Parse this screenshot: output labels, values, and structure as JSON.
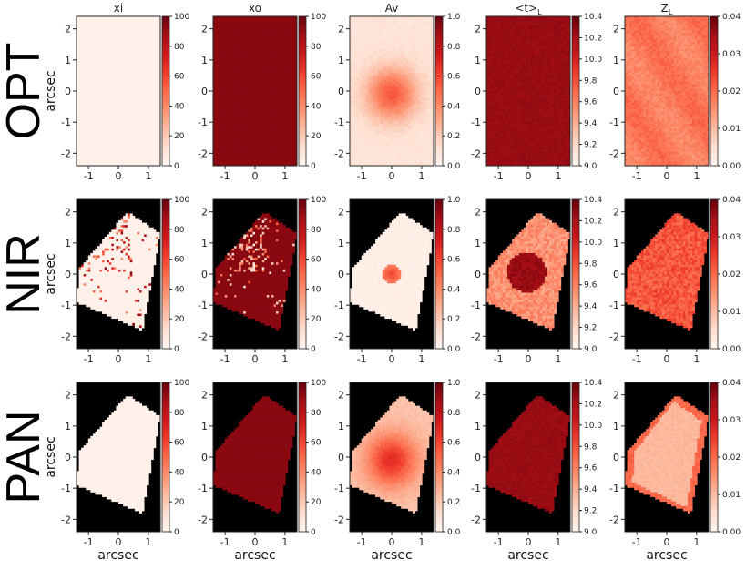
{
  "chart_data": {
    "type": "heatmap",
    "rows": [
      "OPT",
      "NIR",
      "PAN"
    ],
    "columns": [
      {
        "key": "xi",
        "title": "xi",
        "title_sub": "",
        "range": [
          0,
          100
        ],
        "cbticks": [
          "0",
          "20",
          "40",
          "60",
          "80",
          "100"
        ],
        "cbvals": [
          0,
          20,
          40,
          60,
          80,
          100
        ]
      },
      {
        "key": "xo",
        "title": "xo",
        "title_sub": "",
        "range": [
          0,
          100
        ],
        "cbticks": [
          "0",
          "20",
          "40",
          "60",
          "80",
          "100"
        ],
        "cbvals": [
          0,
          20,
          40,
          60,
          80,
          100
        ]
      },
      {
        "key": "Av",
        "title": "Av",
        "title_sub": "",
        "range": [
          0,
          1.0
        ],
        "cbticks": [
          "0.0",
          "0.2",
          "0.4",
          "0.6",
          "0.8",
          "1.0"
        ],
        "cbvals": [
          0,
          0.2,
          0.4,
          0.6,
          0.8,
          1.0
        ]
      },
      {
        "key": "t",
        "title": "<t>",
        "title_sub": "L",
        "range": [
          9.0,
          10.4
        ],
        "cbticks": [
          "9.0",
          "9.2",
          "9.4",
          "9.6",
          "9.8",
          "10.0",
          "10.2",
          "10.4"
        ],
        "cbvals": [
          9.0,
          9.2,
          9.4,
          9.6,
          9.8,
          10.0,
          10.2,
          10.4
        ]
      },
      {
        "key": "Z",
        "title": "Z",
        "title_sub": "L",
        "range": [
          0,
          0.04
        ],
        "cbticks": [
          "0.00",
          "0.01",
          "0.02",
          "0.03",
          "0.04"
        ],
        "cbvals": [
          0,
          0.01,
          0.02,
          0.03,
          0.04
        ]
      }
    ],
    "xlabel": "arcsec",
    "ylabel": "arcsec",
    "xlim": [
      -1.4,
      1.4
    ],
    "ylim": [
      -2.4,
      2.4
    ],
    "xticks": [
      -1,
      0,
      1
    ],
    "yticks": [
      -2,
      -1,
      0,
      1,
      2
    ],
    "colormap": "Reds",
    "masked_color": "#000000",
    "approx_values": {
      "OPT": {
        "xi": "~2 uniform",
        "xo": "~95 uniform",
        "Av": "peak ~0.55 at (0,-0.1), ~0.1 outskirts",
        "t": "~10.3 uniform",
        "Z": "~0.018 patchy"
      },
      "NIR": {
        "xi": "~2 with scattered 40-100 pixels in upper-left",
        "xo": "~95 with scattered low pixels",
        "Av": "peak ~0.6 at (0,0), ~0.02 elsewhere",
        "t": "~10.3 central disk r~0.6, ~9.6 elsewhere",
        "Z": "~0.021 noisy"
      },
      "PAN": {
        "xi": "~2 uniform",
        "xo": "~95 uniform",
        "Av": "peak ~0.55, ~0.2 outskirts",
        "t": "~10.3 uniform",
        "Z": "~0.01 interior, ~0.02 edges"
      }
    }
  }
}
